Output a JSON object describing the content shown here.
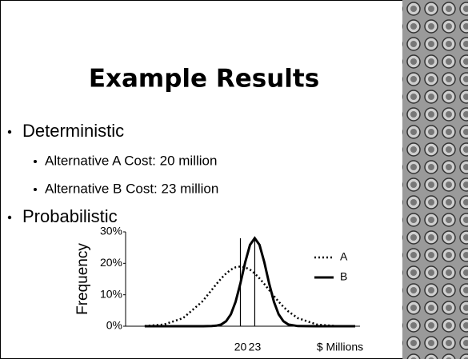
{
  "title": "Example Results",
  "bullets": [
    {
      "text": "Deterministic",
      "sub": [
        "Alternative A Cost: 20 million",
        "Alternative B Cost: 23 million"
      ]
    },
    {
      "text": "Probabilistic",
      "sub": []
    }
  ],
  "chart_data": {
    "type": "line",
    "ylabel": "Frequency",
    "xlabel": "$ Millions",
    "x": [
      0,
      4,
      8,
      12,
      14,
      15,
      16,
      17,
      18,
      19,
      20,
      21,
      22,
      23,
      24,
      25,
      26,
      27,
      28,
      29,
      30,
      32,
      36,
      40,
      44
    ],
    "series": [
      {
        "name": "A",
        "color": "#000000",
        "style": "dotted",
        "values": [
          0.07,
          0.54,
          2.57,
          7.81,
          11.52,
          13.43,
          15.21,
          16.77,
          17.97,
          18.74,
          19,
          18.74,
          17.97,
          16.77,
          15.21,
          13.43,
          11.52,
          9.62,
          7.81,
          6.17,
          4.74,
          2.57,
          0.54,
          0.07,
          0.01
        ]
      },
      {
        "name": "B",
        "color": "#000000",
        "style": "solid",
        "values": [
          0,
          0,
          0,
          0,
          0.04,
          0.17,
          0.56,
          1.57,
          3.79,
          7.78,
          13.63,
          20.33,
          25.85,
          28,
          25.85,
          20.33,
          13.63,
          7.78,
          3.79,
          1.57,
          0.56,
          0.04,
          0,
          0,
          0
        ]
      }
    ],
    "xlim": [
      -4,
      45
    ],
    "xticks": [
      20,
      23
    ],
    "ylim": [
      0,
      30
    ],
    "yticks": [
      {
        "value": 0,
        "label": "0%"
      },
      {
        "value": 10,
        "label": "10%"
      },
      {
        "value": 20,
        "label": "20%"
      },
      {
        "value": 30,
        "label": "30%"
      }
    ],
    "legend": "right"
  }
}
